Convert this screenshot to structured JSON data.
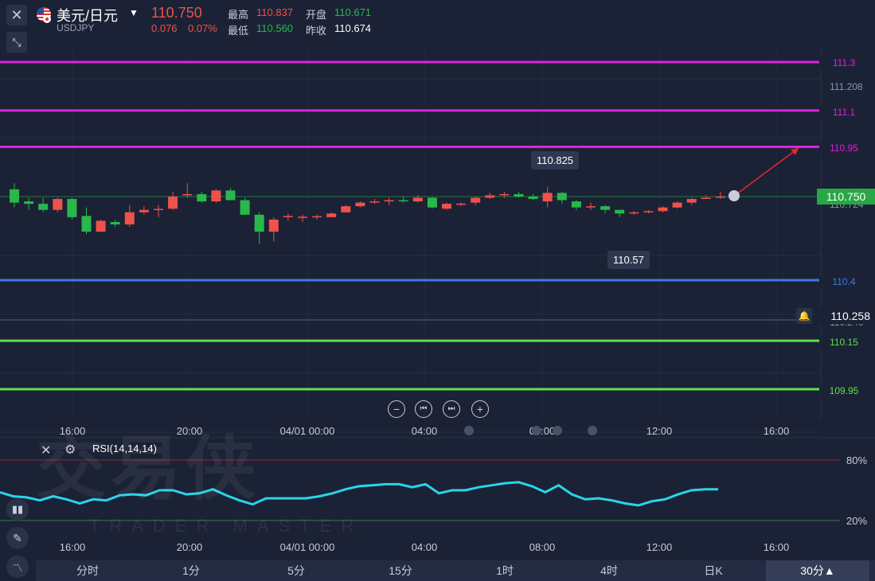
{
  "header": {
    "symbol_name": "美元/日元",
    "symbol_code": "USDJPY",
    "last_price": "110.750",
    "change": "0.076",
    "change_pct": "0.07%",
    "high_label": "最高",
    "high_value": "110.837",
    "low_label": "最低",
    "low_value": "110.560",
    "open_label": "开盘",
    "open_value": "110.671",
    "prev_close_label": "昨收",
    "prev_close_value": "110.674"
  },
  "levels": [
    {
      "label": "111.3",
      "value": 111.3,
      "color": "#e020e0"
    },
    {
      "label": "111.1",
      "value": 111.1,
      "color": "#e020e0"
    },
    {
      "label": "110.95",
      "value": 110.95,
      "color": "#e020e0"
    },
    {
      "label": "110.4",
      "value": 110.4,
      "color": "#3a7be0"
    },
    {
      "label": "110.15",
      "value": 110.15,
      "color": "#5ee04a"
    },
    {
      "label": "109.95",
      "value": 109.95,
      "color": "#5ee04a"
    }
  ],
  "y_axis_faint": [
    "111.208",
    "110.724",
    "110.240"
  ],
  "current_price_tag": "110.750",
  "alert_price": "110.258",
  "annotations": {
    "high": "110.825",
    "low": "110.57"
  },
  "time_axis": [
    "16:00",
    "20:00",
    "04/01 00:00",
    "04:00",
    "08:00",
    "12:00",
    "16:00"
  ],
  "rsi": {
    "label": "RSI(14,14,14)",
    "upper": "80%",
    "lower": "20%",
    "values": [
      48,
      44,
      43,
      40,
      44,
      41,
      37,
      41,
      40,
      45,
      46,
      45,
      50,
      50,
      46,
      47,
      51,
      45,
      40,
      36,
      42,
      42,
      42,
      42,
      44,
      47,
      51,
      54,
      55,
      56,
      56,
      53,
      56,
      47,
      50,
      50,
      53,
      55,
      57,
      58,
      54,
      48,
      55,
      46,
      41,
      42,
      40,
      37,
      35,
      39,
      41,
      46,
      50,
      51,
      51
    ]
  },
  "candles": [
    {
      "o": 110.775,
      "c": 110.72,
      "h": 110.8,
      "l": 110.7
    },
    {
      "o": 110.725,
      "c": 110.715,
      "h": 110.74,
      "l": 110.69
    },
    {
      "o": 110.715,
      "c": 110.69,
      "h": 110.74,
      "l": 110.68
    },
    {
      "o": 110.69,
      "c": 110.735,
      "h": 110.74,
      "l": 110.68
    },
    {
      "o": 110.735,
      "c": 110.66,
      "h": 110.74,
      "l": 110.65
    },
    {
      "o": 110.665,
      "c": 110.6,
      "h": 110.7,
      "l": 110.59
    },
    {
      "o": 110.6,
      "c": 110.645,
      "h": 110.65,
      "l": 110.6
    },
    {
      "o": 110.64,
      "c": 110.63,
      "h": 110.65,
      "l": 110.62
    },
    {
      "o": 110.63,
      "c": 110.68,
      "h": 110.71,
      "l": 110.62
    },
    {
      "o": 110.68,
      "c": 110.69,
      "h": 110.705,
      "l": 110.67
    },
    {
      "o": 110.692,
      "c": 110.694,
      "h": 110.71,
      "l": 110.66
    },
    {
      "o": 110.695,
      "c": 110.745,
      "h": 110.765,
      "l": 110.69
    },
    {
      "o": 110.75,
      "c": 110.755,
      "h": 110.8,
      "l": 110.74
    },
    {
      "o": 110.755,
      "c": 110.725,
      "h": 110.765,
      "l": 110.72
    },
    {
      "o": 110.725,
      "c": 110.77,
      "h": 110.775,
      "l": 110.72
    },
    {
      "o": 110.77,
      "c": 110.73,
      "h": 110.78,
      "l": 110.73
    },
    {
      "o": 110.73,
      "c": 110.67,
      "h": 110.74,
      "l": 110.67
    },
    {
      "o": 110.67,
      "c": 110.6,
      "h": 110.68,
      "l": 110.55
    },
    {
      "o": 110.6,
      "c": 110.65,
      "h": 110.66,
      "l": 110.56
    },
    {
      "o": 110.66,
      "c": 110.665,
      "h": 110.675,
      "l": 110.645
    },
    {
      "o": 110.66,
      "c": 110.662,
      "h": 110.67,
      "l": 110.64
    },
    {
      "o": 110.66,
      "c": 110.664,
      "h": 110.67,
      "l": 110.65
    },
    {
      "o": 110.66,
      "c": 110.675,
      "h": 110.68,
      "l": 110.66
    },
    {
      "o": 110.68,
      "c": 110.705,
      "h": 110.71,
      "l": 110.68
    },
    {
      "o": 110.705,
      "c": 110.72,
      "h": 110.725,
      "l": 110.7
    },
    {
      "o": 110.72,
      "c": 110.725,
      "h": 110.735,
      "l": 110.715
    },
    {
      "o": 110.725,
      "c": 110.73,
      "h": 110.74,
      "l": 110.71
    },
    {
      "o": 110.73,
      "c": 110.725,
      "h": 110.745,
      "l": 110.72
    },
    {
      "o": 110.725,
      "c": 110.74,
      "h": 110.75,
      "l": 110.72
    },
    {
      "o": 110.74,
      "c": 110.7,
      "h": 110.745,
      "l": 110.695
    },
    {
      "o": 110.695,
      "c": 110.715,
      "h": 110.72,
      "l": 110.69
    },
    {
      "o": 110.715,
      "c": 110.716,
      "h": 110.72,
      "l": 110.705
    },
    {
      "o": 110.72,
      "c": 110.74,
      "h": 110.745,
      "l": 110.71
    },
    {
      "o": 110.74,
      "c": 110.75,
      "h": 110.76,
      "l": 110.735
    },
    {
      "o": 110.75,
      "c": 110.755,
      "h": 110.765,
      "l": 110.74
    },
    {
      "o": 110.755,
      "c": 110.745,
      "h": 110.765,
      "l": 110.74
    },
    {
      "o": 110.745,
      "c": 110.735,
      "h": 110.755,
      "l": 110.73
    },
    {
      "o": 110.725,
      "c": 110.76,
      "h": 110.785,
      "l": 110.7
    },
    {
      "o": 110.76,
      "c": 110.73,
      "h": 110.765,
      "l": 110.715
    },
    {
      "o": 110.725,
      "c": 110.7,
      "h": 110.73,
      "l": 110.69
    },
    {
      "o": 110.7,
      "c": 110.705,
      "h": 110.72,
      "l": 110.69
    },
    {
      "o": 110.705,
      "c": 110.69,
      "h": 110.71,
      "l": 110.675
    },
    {
      "o": 110.69,
      "c": 110.675,
      "h": 110.69,
      "l": 110.66
    },
    {
      "o": 110.675,
      "c": 110.68,
      "h": 110.685,
      "l": 110.67
    },
    {
      "o": 110.68,
      "c": 110.685,
      "h": 110.69,
      "l": 110.675
    },
    {
      "o": 110.685,
      "c": 110.7,
      "h": 110.705,
      "l": 110.68
    },
    {
      "o": 110.7,
      "c": 110.72,
      "h": 110.725,
      "l": 110.695
    },
    {
      "o": 110.72,
      "c": 110.735,
      "h": 110.74,
      "l": 110.71
    },
    {
      "o": 110.735,
      "c": 110.74,
      "h": 110.75,
      "l": 110.735
    },
    {
      "o": 110.74,
      "c": 110.745,
      "h": 110.765,
      "l": 110.735
    },
    {
      "o": 110.745,
      "c": 110.75,
      "h": 110.755,
      "l": 110.74
    }
  ],
  "timeframes": [
    "分时",
    "1分",
    "5分",
    "15分",
    "1时",
    "4时",
    "日K",
    "30分▲"
  ],
  "colors": {
    "up": "#f0514b",
    "down": "#28b84c",
    "rsi": "#2ad4e8",
    "bg": "#1b2235"
  }
}
